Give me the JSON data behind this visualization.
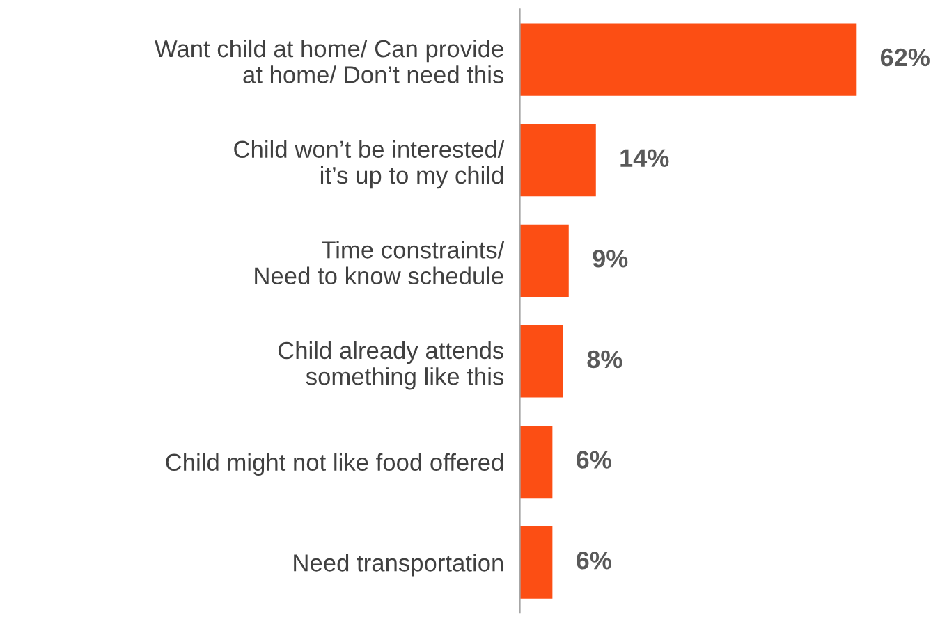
{
  "chart_data": {
    "type": "bar",
    "orientation": "horizontal",
    "categories": [
      "Want child at home/ Can provide\nat home/ Don’t need this",
      "Child won’t be interested/\nit’s up to my child",
      "Time constraints/\nNeed to know schedule",
      "Child already attends\nsomething like this",
      "Child might not like food offered",
      "Need transportation"
    ],
    "values": [
      62,
      14,
      9,
      8,
      6,
      6
    ],
    "value_labels": [
      "62%",
      "14%",
      "9%",
      "8%",
      "6%",
      "6%"
    ],
    "color": "#fc4e14",
    "grid": false,
    "legend": false
  }
}
